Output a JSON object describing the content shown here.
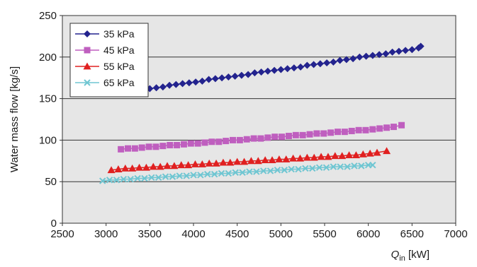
{
  "chart_data": {
    "type": "line",
    "title": "",
    "ylabel": "Water mass flow  [kg/s]",
    "xlabel": {
      "main": "Q",
      "sub": "in",
      "unit": " [kW]"
    },
    "xlim": [
      2500,
      7000
    ],
    "ylim": [
      0,
      250
    ],
    "x_ticks": [
      "2500",
      "3000",
      "3500",
      "4000",
      "4500",
      "5000",
      "5500",
      "6000",
      "6500",
      "7000"
    ],
    "y_ticks": [
      "0",
      "50",
      "100",
      "150",
      "200",
      "250"
    ],
    "grid": true,
    "legend_position": "top-left",
    "plot_background": "#e6e6e6",
    "series": [
      {
        "name": "35 kPa",
        "color": "#23238e",
        "marker": "diamond",
        "x": [
          3350,
          3425,
          3500,
          3575,
          3650,
          3725,
          3800,
          3875,
          3950,
          4025,
          4100,
          4175,
          4250,
          4325,
          4400,
          4475,
          4550,
          4625,
          4700,
          4775,
          4850,
          4925,
          5000,
          5075,
          5150,
          5225,
          5300,
          5375,
          5450,
          5525,
          5600,
          5675,
          5750,
          5825,
          5900,
          5975,
          6050,
          6125,
          6200,
          6275,
          6350,
          6425,
          6500,
          6575,
          6600
        ],
        "y": [
          158,
          160,
          162,
          163,
          164,
          166,
          167,
          168,
          169,
          170,
          171,
          173,
          174,
          175,
          176,
          177,
          178,
          179,
          181,
          182,
          183,
          184,
          185,
          186,
          187,
          188,
          190,
          191,
          192,
          193,
          194,
          196,
          197,
          198,
          200,
          201,
          202,
          203,
          204,
          206,
          207,
          208,
          209,
          211,
          213
        ]
      },
      {
        "name": "45 kPa",
        "color": "#bf5fbf",
        "marker": "square",
        "x": [
          3170,
          3250,
          3330,
          3410,
          3490,
          3570,
          3650,
          3730,
          3810,
          3890,
          3970,
          4050,
          4130,
          4210,
          4290,
          4370,
          4450,
          4530,
          4610,
          4690,
          4770,
          4850,
          4930,
          5010,
          5090,
          5170,
          5250,
          5330,
          5410,
          5490,
          5570,
          5650,
          5730,
          5810,
          5890,
          5970,
          6050,
          6130,
          6210,
          6290,
          6380
        ],
        "y": [
          89,
          90,
          90,
          91,
          92,
          92,
          93,
          94,
          94,
          95,
          96,
          96,
          97,
          98,
          98,
          99,
          100,
          100,
          101,
          102,
          102,
          103,
          104,
          104,
          105,
          106,
          106,
          107,
          108,
          108,
          109,
          110,
          110,
          111,
          112,
          112,
          113,
          114,
          115,
          116,
          118
        ]
      },
      {
        "name": "55 kPa",
        "color": "#e02020",
        "marker": "triangle",
        "x": [
          3060,
          3140,
          3220,
          3300,
          3380,
          3460,
          3540,
          3620,
          3700,
          3780,
          3860,
          3940,
          4020,
          4100,
          4180,
          4260,
          4340,
          4420,
          4500,
          4580,
          4660,
          4740,
          4820,
          4900,
          4980,
          5060,
          5140,
          5220,
          5300,
          5380,
          5460,
          5540,
          5620,
          5700,
          5780,
          5860,
          5940,
          6020,
          6100,
          6210
        ],
        "y": [
          64,
          65,
          66,
          66,
          67,
          67,
          68,
          68,
          69,
          69,
          70,
          70,
          71,
          71,
          72,
          72,
          73,
          73,
          74,
          74,
          75,
          75,
          76,
          76,
          77,
          77,
          78,
          78,
          79,
          79,
          80,
          80,
          81,
          81,
          82,
          82,
          83,
          84,
          85,
          87
        ]
      },
      {
        "name": "65 kPa",
        "color": "#6fc6d2",
        "marker": "x",
        "x": [
          2960,
          3040,
          3120,
          3200,
          3280,
          3360,
          3440,
          3520,
          3600,
          3680,
          3760,
          3840,
          3920,
          4000,
          4080,
          4160,
          4240,
          4320,
          4400,
          4480,
          4560,
          4640,
          4720,
          4800,
          4880,
          4960,
          5040,
          5120,
          5200,
          5280,
          5360,
          5440,
          5520,
          5600,
          5680,
          5760,
          5840,
          5920,
          6000,
          6050
        ],
        "y": [
          51,
          52,
          52,
          53,
          53,
          54,
          54,
          55,
          55,
          56,
          56,
          57,
          57,
          58,
          58,
          59,
          59,
          60,
          60,
          61,
          61,
          62,
          62,
          63,
          63,
          64,
          64,
          65,
          65,
          66,
          66,
          67,
          67,
          68,
          68,
          68,
          69,
          69,
          70,
          70
        ]
      }
    ]
  }
}
